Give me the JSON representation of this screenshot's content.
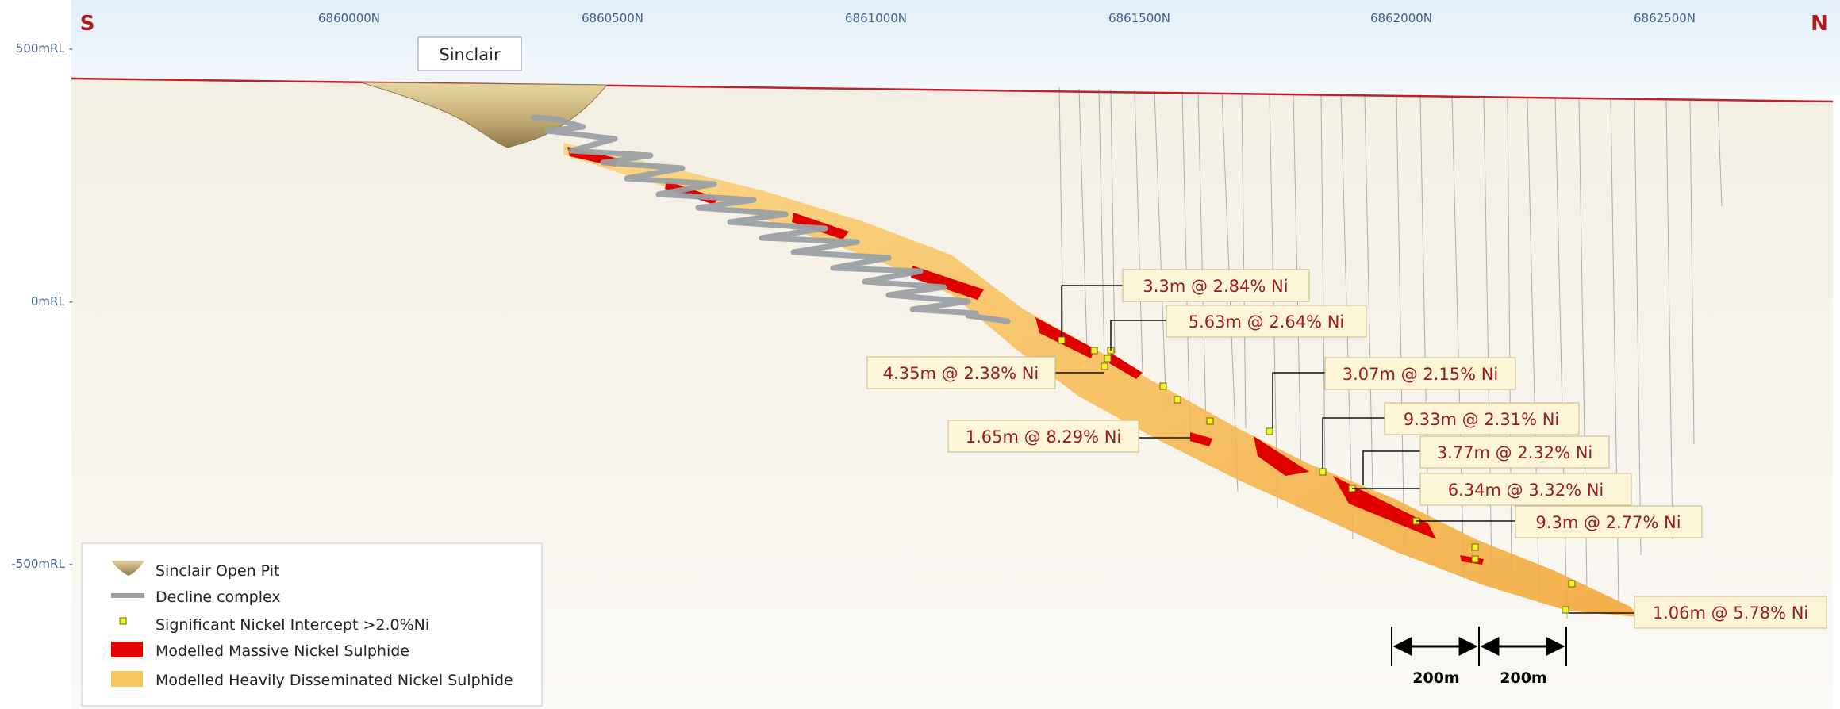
{
  "compass": {
    "south": "S",
    "north": "N"
  },
  "northings": [
    "6860000N",
    "6860500N",
    "6861000N",
    "6861500N",
    "6862000N",
    "6862500N"
  ],
  "elevations": [
    "500mRL -",
    "0mRL -",
    "-500mRL -"
  ],
  "pit_label": "Sinclair",
  "intercepts": [
    "3.3m @ 2.84% Ni",
    "5.63m @ 2.64% Ni",
    "4.35m @ 2.38% Ni",
    "3.07m @ 2.15% Ni",
    "9.33m @ 2.31% Ni",
    "1.65m @ 8.29% Ni",
    "3.77m @ 2.32% Ni",
    "6.34m @ 3.32% Ni",
    "9.3m @ 2.77% Ni",
    "1.06m @ 5.78% Ni"
  ],
  "legend": {
    "open_pit": "Sinclair Open Pit",
    "decline": "Decline complex",
    "intercept": "Significant Nickel Intercept >2.0%Ni",
    "massive": "Modelled Massive Nickel Sulphide",
    "disseminated": "Modelled Heavily Disseminated Nickel Sulphide"
  },
  "scale_bar": {
    "left": "200m",
    "right": "200m"
  },
  "colors": {
    "massive": "#e00000",
    "disseminated": "#f8c860",
    "surface": "#c0202a",
    "sky": "#e8f2fb",
    "ground": "#f7f3ec",
    "label_text": "#9a1a1a",
    "label_fill": "#fdf5d8",
    "axis_text": "#3f5f8a",
    "compass": "#b01c1c",
    "intercept_marker": "#f4f02a"
  }
}
